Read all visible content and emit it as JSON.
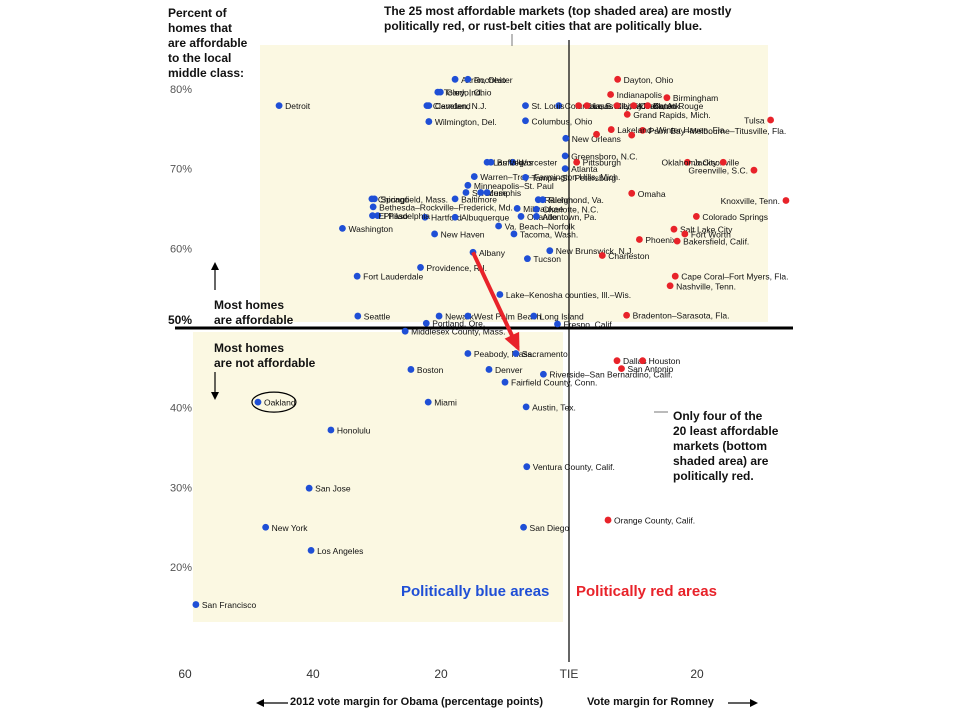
{
  "annotations": {
    "ylabel": "Percent of\nhomes that\nare affordable\nto the local\nmiddle class:",
    "top_note": "The 25 most affordable markets (top shaded area) are mostly\npolitically red, or rust-belt cities that are politically blue.",
    "bottom_note": "Only four of the\n20 least affordable\nmarkets (bottom\nshaded area) are\npolitically red.",
    "affordable": "Most homes\nare affordable",
    "not_affordable": "Most homes\nare not affordable",
    "fifty": "50%",
    "blue_label": "Politically blue areas",
    "red_label": "Politically red areas",
    "xlabel_left": "2012 vote margin for Obama (percentage points)",
    "xlabel_right": "Vote margin for Romney"
  },
  "colors": {
    "blue": "#1f4fd6",
    "red": "#e8232a",
    "shade": "#fbf8e2",
    "arrow": "#e8232a"
  },
  "chart_data": {
    "type": "scatter",
    "xlim": [
      -60,
      30
    ],
    "ylim": [
      10,
      85
    ],
    "x_ticks": [
      -60,
      -40,
      -20,
      0,
      20
    ],
    "x_tick_labels": [
      "60",
      "40",
      "20",
      "TIE",
      "20"
    ],
    "y_ticks": [
      20,
      30,
      40,
      60,
      70,
      80
    ],
    "y_tick_labels": [
      "20%",
      "30%",
      "40%",
      "60%",
      "70%",
      "80%"
    ],
    "highlight": "Oakland",
    "arrow": {
      "from": [
        -15,
        59.5
      ],
      "to": [
        -8,
        47.5
      ]
    },
    "series": [
      {
        "name": "Politically blue areas",
        "color": "blue",
        "points": [
          {
            "label": "Detroit",
            "x": -45.3,
            "y": 77.9
          },
          {
            "label": "Akron, Ohio",
            "x": -17.8,
            "y": 81.2
          },
          {
            "label": "Rochester",
            "x": -15.8,
            "y": 81.2
          },
          {
            "label": "Toledo, Ohio",
            "x": -20.5,
            "y": 79.6
          },
          {
            "label": "Gary, Ind.",
            "x": -20.1,
            "y": 79.6
          },
          {
            "label": "Columbia, S.C.",
            "x": -1.6,
            "y": 77.9
          },
          {
            "label": "St. Louis",
            "x": -6.8,
            "y": 77.9
          },
          {
            "label": "Cleveland",
            "x": -22.2,
            "y": 77.9
          },
          {
            "label": "Camden, N.J.",
            "x": -21.9,
            "y": 77.9
          },
          {
            "label": "Wilmington, Del.",
            "x": -21.9,
            "y": 75.9
          },
          {
            "label": "Columbus, Ohio",
            "x": -6.8,
            "y": 76.0
          },
          {
            "label": "New Orleans",
            "x": -0.5,
            "y": 73.8
          },
          {
            "label": "Greensboro, N.C.",
            "x": -0.6,
            "y": 71.6
          },
          {
            "label": "Worcester",
            "x": -8.8,
            "y": 70.8
          },
          {
            "label": "Las Vegas",
            "x": -12.8,
            "y": 70.8
          },
          {
            "label": "Buffalo",
            "x": -12.2,
            "y": 70.8
          },
          {
            "label": "Atlanta",
            "x": -0.6,
            "y": 70.0
          },
          {
            "label": "Warren–Troy–Farmington Hills, Mich.",
            "x": -14.8,
            "y": 69.0
          },
          {
            "label": "Tampa–St. Petersburg",
            "x": -6.8,
            "y": 68.9
          },
          {
            "label": "Minneapolis–St. Paul",
            "x": -15.8,
            "y": 67.9
          },
          {
            "label": "Syracuse",
            "x": -16.1,
            "y": 67.0
          },
          {
            "label": "Memphis",
            "x": -13.8,
            "y": 67.0
          },
          {
            "label": "Memphis (2)",
            "x": -12.8,
            "y": 67.0
          },
          {
            "label": "Baltimore",
            "x": -17.8,
            "y": 66.2
          },
          {
            "label": "Raleigh",
            "x": -4.8,
            "y": 66.1
          },
          {
            "label": "Richmond, Va.",
            "x": -4.1,
            "y": 66.1
          },
          {
            "label": "Milwaukee",
            "x": -8.1,
            "y": 65.0
          },
          {
            "label": "Charlotte, N.C.",
            "x": -5.1,
            "y": 64.9
          },
          {
            "label": "Orlando",
            "x": -7.5,
            "y": 64.0
          },
          {
            "label": "Allentown, Pa.",
            "x": -5.1,
            "y": 64.0
          },
          {
            "label": "Springfield, Mass.",
            "x": -30.4,
            "y": 66.2
          },
          {
            "label": "Chicago",
            "x": -30.8,
            "y": 66.2
          },
          {
            "label": "Bethesda–Rockville–Frederick, Md.",
            "x": -30.6,
            "y": 65.2
          },
          {
            "label": "Hartford",
            "x": -22.5,
            "y": 63.9
          },
          {
            "label": "Albuquerque",
            "x": -17.8,
            "y": 63.9
          },
          {
            "label": "Philadelphia",
            "x": -29.9,
            "y": 64.1
          },
          {
            "label": "El Paso",
            "x": -30.7,
            "y": 64.1
          },
          {
            "label": "Va. Beach–Norfolk",
            "x": -11.0,
            "y": 62.8
          },
          {
            "label": "Washington",
            "x": -35.4,
            "y": 62.5
          },
          {
            "label": "New Haven",
            "x": -21.0,
            "y": 61.8
          },
          {
            "label": "Tacoma, Wash.",
            "x": -8.6,
            "y": 61.8
          },
          {
            "label": "Albany",
            "x": -15.0,
            "y": 59.5
          },
          {
            "label": "New Brunswick, N.J.",
            "x": -3.0,
            "y": 59.7
          },
          {
            "label": "Providence, R.I.",
            "x": -23.2,
            "y": 57.6
          },
          {
            "label": "Tucson",
            "x": -6.5,
            "y": 58.7
          },
          {
            "label": "Fort Lauderdale",
            "x": -33.1,
            "y": 56.5
          },
          {
            "label": "Seattle",
            "x": -33.0,
            "y": 51.5
          },
          {
            "label": "Newark",
            "x": -20.3,
            "y": 51.5
          },
          {
            "label": "West Palm Beach",
            "x": -15.8,
            "y": 51.5
          },
          {
            "label": "Lake–Kenosha counties, Ill.–Wis.",
            "x": -10.8,
            "y": 54.2
          },
          {
            "label": "Long Island",
            "x": -5.5,
            "y": 51.5
          },
          {
            "label": "Portland, Ore.",
            "x": -22.3,
            "y": 50.6
          },
          {
            "label": "Fresno, Calif.",
            "x": -1.8,
            "y": 50.5
          },
          {
            "label": "Middlesex County, Mass.",
            "x": -25.6,
            "y": 49.6
          },
          {
            "label": "Peabody, Mass.",
            "x": -15.8,
            "y": 46.8
          },
          {
            "label": "Sacramento",
            "x": -8.3,
            "y": 46.8
          },
          {
            "label": "Boston",
            "x": -24.7,
            "y": 44.8
          },
          {
            "label": "Denver",
            "x": -12.5,
            "y": 44.8
          },
          {
            "label": "Riverside–San Bernardino, Calif.",
            "x": -4.0,
            "y": 44.2
          },
          {
            "label": "Fairfield County, Conn.",
            "x": -10.0,
            "y": 43.2
          },
          {
            "label": "Miami",
            "x": -22.0,
            "y": 40.7
          },
          {
            "label": "Austin, Tex.",
            "x": -6.7,
            "y": 40.1
          },
          {
            "label": "Oakland",
            "x": -48.6,
            "y": 40.7
          },
          {
            "label": "Honolulu",
            "x": -37.2,
            "y": 37.2
          },
          {
            "label": "Ventura County, Calif.",
            "x": -6.6,
            "y": 32.6
          },
          {
            "label": "San Jose",
            "x": -40.6,
            "y": 29.9
          },
          {
            "label": "New York",
            "x": -47.4,
            "y": 25.0
          },
          {
            "label": "San Diego",
            "x": -7.1,
            "y": 25.0
          },
          {
            "label": "Los Angeles",
            "x": -40.3,
            "y": 22.1
          },
          {
            "label": "San Francisco",
            "x": -58.3,
            "y": 15.3
          }
        ]
      },
      {
        "name": "Politically red areas",
        "color": "red",
        "points": [
          {
            "label": "Kansas City, Mo.–Kan.",
            "x": 1.5,
            "y": 77.9
          },
          {
            "label": "Dayton, Ohio",
            "x": 7.6,
            "y": 81.2
          },
          {
            "label": "Indianapolis",
            "x": 6.5,
            "y": 79.3
          },
          {
            "label": "Louisville, Ky.",
            "x": 2.8,
            "y": 77.9
          },
          {
            "label": "Little Rock, Ark.",
            "x": 7.5,
            "y": 77.9
          },
          {
            "label": "Cincinnati",
            "x": 10.1,
            "y": 77.9
          },
          {
            "label": "Birmingham",
            "x": 15.3,
            "y": 78.9
          },
          {
            "label": "Baton Rouge",
            "x": 12.3,
            "y": 77.9
          },
          {
            "label": "Tulsa",
            "x": 31.5,
            "y": 76.1
          },
          {
            "label": "Grand Rapids, Mich.",
            "x": 9.1,
            "y": 76.8
          },
          {
            "label": "Palm Bay–Melbourne–Titusville, Fla.",
            "x": 11.5,
            "y": 74.8
          },
          {
            "label": "Lakeland–Winter Haven, Fla.",
            "x": 6.6,
            "y": 74.9
          },
          {
            "label": "Palm Bay (2)",
            "x": 9.8,
            "y": 74.2
          },
          {
            "label": "Lakeland (2)",
            "x": 4.3,
            "y": 74.3
          },
          {
            "label": "Pittsburgh",
            "x": 1.2,
            "y": 70.8
          },
          {
            "label": "Jacksonville",
            "x": 18.5,
            "y": 70.8
          },
          {
            "label": "Oklahoma City",
            "x": 24.1,
            "y": 70.8
          },
          {
            "label": "Greenville, S.C.",
            "x": 28.9,
            "y": 69.8
          },
          {
            "label": "Omaha",
            "x": 9.8,
            "y": 66.9
          },
          {
            "label": "Knoxville, Tenn.",
            "x": 33.9,
            "y": 66.0
          },
          {
            "label": "Colorado Springs",
            "x": 19.9,
            "y": 64.0
          },
          {
            "label": "Salt Lake City",
            "x": 16.4,
            "y": 62.4
          },
          {
            "label": "Fort Worth",
            "x": 18.1,
            "y": 61.8
          },
          {
            "label": "Phoenix",
            "x": 11.0,
            "y": 61.1
          },
          {
            "label": "Bakersfield, Calif.",
            "x": 16.9,
            "y": 60.9
          },
          {
            "label": "Charleston",
            "x": 5.2,
            "y": 59.1
          },
          {
            "label": "Cape Coral–Fort Myers, Fla.",
            "x": 16.6,
            "y": 56.5
          },
          {
            "label": "Nashville, Tenn.",
            "x": 15.8,
            "y": 55.3
          },
          {
            "label": "Bradenton–Sarasota, Fla.",
            "x": 9.0,
            "y": 51.6
          },
          {
            "label": "Dallas",
            "x": 7.5,
            "y": 45.9
          },
          {
            "label": "Houston",
            "x": 11.5,
            "y": 45.9
          },
          {
            "label": "San Antonio",
            "x": 8.2,
            "y": 44.9
          },
          {
            "label": "Orange County, Calif.",
            "x": 6.1,
            "y": 25.9
          }
        ]
      }
    ]
  }
}
